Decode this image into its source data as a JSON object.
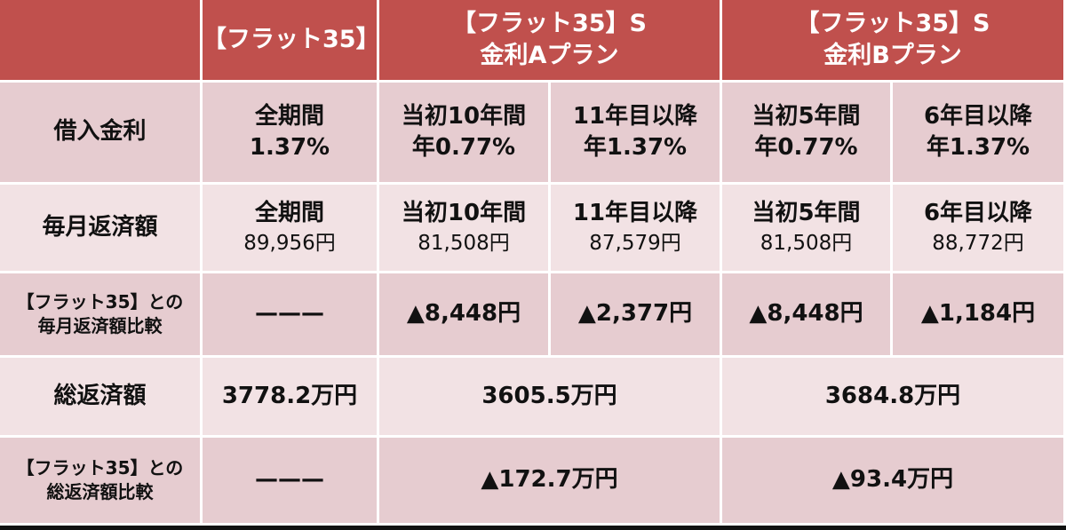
{
  "table": {
    "header": [
      {
        "lines": [
          "【フラット35】"
        ]
      },
      {
        "lines": [
          "【フラット35】S",
          "金利Aプラン"
        ]
      },
      {
        "lines": [
          "【フラット35】S",
          "金利Bプラン"
        ]
      }
    ],
    "rows": [
      {
        "label": [
          "借入金利"
        ],
        "cells": [
          [
            "全期間",
            "1.37%"
          ],
          [
            "当初10年間",
            "年0.77%"
          ],
          [
            "11年目以降",
            "年1.37%"
          ],
          [
            "当初5年間",
            "年0.77%"
          ],
          [
            "6年目以降",
            "年1.37%"
          ]
        ]
      },
      {
        "label": [
          "毎月返済額"
        ],
        "cells": [
          [
            "全期間",
            "89,956円"
          ],
          [
            "当初10年間",
            "81,508円"
          ],
          [
            "11年目以降",
            "87,579円"
          ],
          [
            "当初5年間",
            "81,508円"
          ],
          [
            "6年目以降",
            "88,772円"
          ]
        ]
      },
      {
        "label": [
          "【フラット35】との",
          "毎月返済額比較"
        ],
        "cells": [
          [
            "———"
          ],
          [
            "▲8,448円"
          ],
          [
            "▲2,377円"
          ],
          [
            "▲8,448円"
          ],
          [
            "▲1,184円"
          ]
        ]
      },
      {
        "label": [
          "総返済額"
        ],
        "cells": [
          [
            "3778.2万円"
          ],
          [
            "3605.5万円"
          ],
          [
            "3684.8万円"
          ]
        ]
      },
      {
        "label": [
          "【フラット35】との",
          "総返済額比較"
        ],
        "cells": [
          [
            "———"
          ],
          [
            "▲172.7万円"
          ],
          [
            "▲93.4万円"
          ]
        ]
      }
    ]
  }
}
